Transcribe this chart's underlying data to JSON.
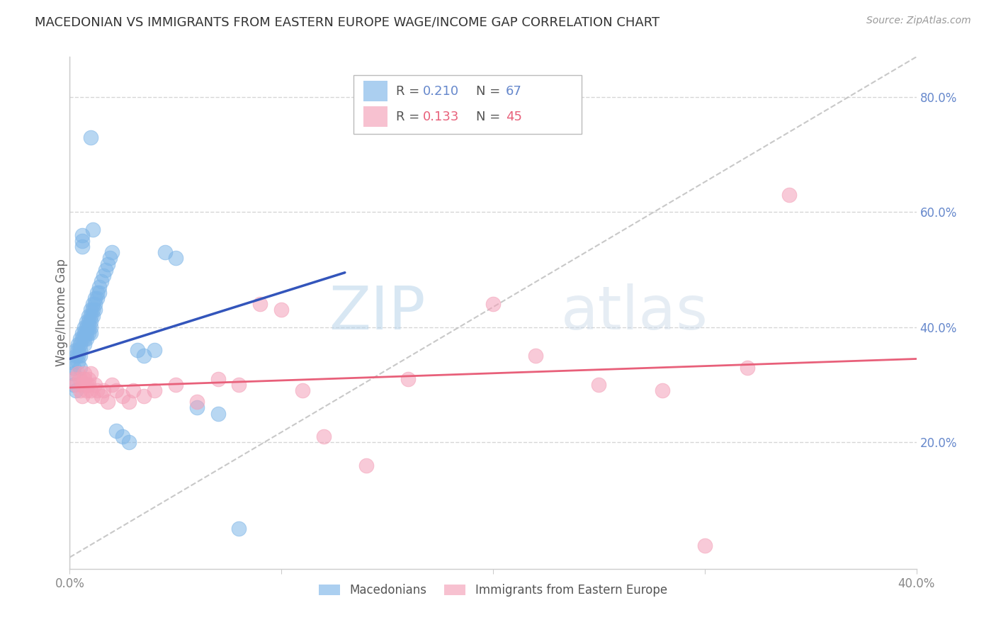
{
  "title": "MACEDONIAN VS IMMIGRANTS FROM EASTERN EUROPE WAGE/INCOME GAP CORRELATION CHART",
  "source": "Source: ZipAtlas.com",
  "ylabel": "Wage/Income Gap",
  "legend1_r": "0.210",
  "legend1_n": "67",
  "legend2_r": "0.133",
  "legend2_n": "45",
  "legend_label1": "Macedonians",
  "legend_label2": "Immigrants from Eastern Europe",
  "blue_color": "#7EB6E8",
  "pink_color": "#F4A0B8",
  "line_blue": "#3355BB",
  "line_pink": "#E8607A",
  "dashed_color": "#BBBBBB",
  "watermark_color": "#D8E8F0",
  "background_color": "#FFFFFF",
  "grid_color": "#CCCCCC",
  "axis_color": "#CCCCCC",
  "right_label_color": "#6688CC",
  "title_color": "#333333",
  "xlim": [
    0.0,
    0.4
  ],
  "ylim": [
    -0.02,
    0.87
  ],
  "blue_x": [
    0.001,
    0.002,
    0.002,
    0.002,
    0.003,
    0.003,
    0.003,
    0.004,
    0.004,
    0.004,
    0.004,
    0.005,
    0.005,
    0.005,
    0.005,
    0.005,
    0.006,
    0.006,
    0.006,
    0.006,
    0.006,
    0.007,
    0.007,
    0.007,
    0.007,
    0.008,
    0.008,
    0.008,
    0.008,
    0.009,
    0.009,
    0.009,
    0.009,
    0.01,
    0.01,
    0.01,
    0.01,
    0.01,
    0.011,
    0.011,
    0.011,
    0.011,
    0.012,
    0.012,
    0.012,
    0.013,
    0.013,
    0.014,
    0.014,
    0.015,
    0.016,
    0.017,
    0.018,
    0.019,
    0.02,
    0.022,
    0.025,
    0.028,
    0.032,
    0.035,
    0.04,
    0.045,
    0.05,
    0.06,
    0.07,
    0.08,
    0.01
  ],
  "blue_y": [
    0.34,
    0.33,
    0.32,
    0.3,
    0.36,
    0.35,
    0.29,
    0.37,
    0.36,
    0.35,
    0.34,
    0.38,
    0.37,
    0.36,
    0.35,
    0.33,
    0.39,
    0.38,
    0.56,
    0.55,
    0.54,
    0.4,
    0.39,
    0.38,
    0.37,
    0.41,
    0.4,
    0.39,
    0.38,
    0.42,
    0.41,
    0.4,
    0.39,
    0.43,
    0.42,
    0.41,
    0.4,
    0.39,
    0.44,
    0.43,
    0.42,
    0.57,
    0.45,
    0.44,
    0.43,
    0.46,
    0.45,
    0.47,
    0.46,
    0.48,
    0.49,
    0.5,
    0.51,
    0.52,
    0.53,
    0.22,
    0.21,
    0.2,
    0.36,
    0.35,
    0.36,
    0.53,
    0.52,
    0.26,
    0.25,
    0.05,
    0.73
  ],
  "pink_x": [
    0.002,
    0.003,
    0.004,
    0.005,
    0.005,
    0.006,
    0.006,
    0.007,
    0.007,
    0.008,
    0.008,
    0.009,
    0.009,
    0.01,
    0.01,
    0.011,
    0.012,
    0.013,
    0.015,
    0.016,
    0.018,
    0.02,
    0.022,
    0.025,
    0.028,
    0.03,
    0.035,
    0.04,
    0.05,
    0.06,
    0.07,
    0.08,
    0.09,
    0.1,
    0.11,
    0.12,
    0.14,
    0.16,
    0.2,
    0.22,
    0.25,
    0.28,
    0.3,
    0.32,
    0.34
  ],
  "pink_y": [
    0.31,
    0.3,
    0.32,
    0.31,
    0.29,
    0.3,
    0.28,
    0.32,
    0.31,
    0.3,
    0.29,
    0.31,
    0.3,
    0.32,
    0.29,
    0.28,
    0.3,
    0.29,
    0.28,
    0.29,
    0.27,
    0.3,
    0.29,
    0.28,
    0.27,
    0.29,
    0.28,
    0.29,
    0.3,
    0.27,
    0.31,
    0.3,
    0.44,
    0.43,
    0.29,
    0.21,
    0.16,
    0.31,
    0.44,
    0.35,
    0.3,
    0.29,
    0.02,
    0.33,
    0.63
  ],
  "blue_line_x": [
    0.0,
    0.13
  ],
  "blue_line_y": [
    0.345,
    0.495
  ],
  "pink_line_x": [
    0.0,
    0.4
  ],
  "pink_line_y": [
    0.295,
    0.345
  ],
  "dash_line_x": [
    0.0,
    0.4
  ],
  "dash_line_y": [
    0.0,
    0.87
  ]
}
